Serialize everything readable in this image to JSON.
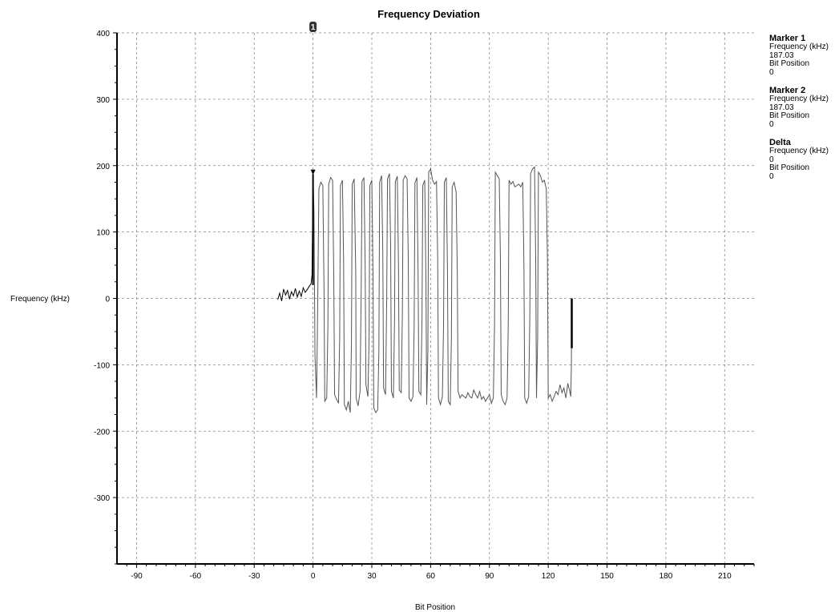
{
  "chart_data": {
    "type": "line",
    "title": "Frequency Deviation",
    "xlabel": "Bit Position",
    "ylabel": "Frequency (kHz)",
    "xlim": [
      -100,
      225
    ],
    "ylim": [
      -400,
      400
    ],
    "x_ticks": [
      -90,
      -60,
      -30,
      0,
      30,
      60,
      90,
      120,
      150,
      180,
      210
    ],
    "y_ticks": [
      400,
      300,
      200,
      100,
      0,
      -100,
      -200,
      -300
    ],
    "grid": true,
    "colors": {
      "trace": "#555555",
      "trace_dark": "#000000",
      "grid": "#888888"
    },
    "marker_label": "1",
    "marker_x": 0,
    "series": [
      {
        "points": [
          [
            -18,
            -2
          ],
          [
            -17,
            8
          ],
          [
            -16,
            -4
          ],
          [
            -15,
            14
          ],
          [
            -14,
            5
          ],
          [
            -13,
            12
          ],
          [
            -12,
            -1
          ],
          [
            -11,
            10
          ],
          [
            -10,
            4
          ],
          [
            -9,
            15
          ],
          [
            -8,
            2
          ],
          [
            -7,
            11
          ],
          [
            -6,
            3
          ],
          [
            -5,
            16
          ],
          [
            -4,
            9
          ],
          [
            -3,
            13
          ],
          [
            -2,
            18
          ],
          [
            -1,
            22
          ],
          [
            -0.5,
            36
          ],
          [
            0,
            187
          ],
          [
            0.5,
            130
          ],
          [
            1,
            -85
          ],
          [
            1.8,
            -150
          ],
          [
            2.2,
            -60
          ],
          [
            3,
            165
          ],
          [
            4,
            175
          ],
          [
            5,
            170
          ],
          [
            5.6,
            20
          ],
          [
            6,
            -155
          ],
          [
            7,
            -150
          ],
          [
            7.6,
            -40
          ],
          [
            8,
            172
          ],
          [
            9,
            182
          ],
          [
            10,
            178
          ],
          [
            10.6,
            30
          ],
          [
            11,
            -145
          ],
          [
            12,
            -152
          ],
          [
            13,
            -158
          ],
          [
            13.6,
            -60
          ],
          [
            14,
            170
          ],
          [
            15,
            178
          ],
          [
            15.6,
            60
          ],
          [
            16,
            -160
          ],
          [
            17,
            -168
          ],
          [
            18,
            -155
          ],
          [
            19,
            -172
          ],
          [
            19.6,
            -70
          ],
          [
            20,
            172
          ],
          [
            21,
            180
          ],
          [
            21.8,
            40
          ],
          [
            22,
            -150
          ],
          [
            23,
            -162
          ],
          [
            24,
            -140
          ],
          [
            24.6,
            20
          ],
          [
            25,
            176
          ],
          [
            26,
            182
          ],
          [
            26.6,
            50
          ],
          [
            27,
            -130
          ],
          [
            28,
            -148
          ],
          [
            28.6,
            -60
          ],
          [
            29,
            170
          ],
          [
            30,
            178
          ],
          [
            30.6,
            40
          ],
          [
            31,
            -165
          ],
          [
            32,
            -172
          ],
          [
            33,
            -168
          ],
          [
            33.6,
            -80
          ],
          [
            34,
            175
          ],
          [
            35,
            185
          ],
          [
            35.6,
            70
          ],
          [
            36,
            -135
          ],
          [
            37,
            -145
          ],
          [
            37.6,
            0
          ],
          [
            38,
            180
          ],
          [
            39,
            188
          ],
          [
            39.6,
            80
          ],
          [
            40,
            -140
          ],
          [
            41,
            -150
          ],
          [
            41.6,
            -30
          ],
          [
            42,
            176
          ],
          [
            43,
            184
          ],
          [
            43.6,
            50
          ],
          [
            44,
            -138
          ],
          [
            45,
            -142
          ],
          [
            45.6,
            -20
          ],
          [
            46,
            178
          ],
          [
            47,
            185
          ],
          [
            48,
            180
          ],
          [
            48.6,
            60
          ],
          [
            49,
            -150
          ],
          [
            50,
            -155
          ],
          [
            51,
            -148
          ],
          [
            51.6,
            -40
          ],
          [
            52,
            174
          ],
          [
            53,
            182
          ],
          [
            53.6,
            40
          ],
          [
            54,
            -140
          ],
          [
            55,
            -145
          ],
          [
            55.6,
            -30
          ],
          [
            56,
            170
          ],
          [
            57,
            178
          ],
          [
            57.6,
            30
          ],
          [
            58,
            -160
          ],
          [
            58.6,
            -80
          ],
          [
            59,
            190
          ],
          [
            60,
            195
          ],
          [
            61,
            178
          ],
          [
            62,
            172
          ],
          [
            63,
            176
          ],
          [
            63.6,
            60
          ],
          [
            64,
            -150
          ],
          [
            65,
            -160
          ],
          [
            66,
            -148
          ],
          [
            66.6,
            -40
          ],
          [
            67,
            175
          ],
          [
            68,
            182
          ],
          [
            68.6,
            40
          ],
          [
            69,
            -155
          ],
          [
            70,
            -160
          ],
          [
            70.6,
            -60
          ],
          [
            71,
            168
          ],
          [
            72,
            175
          ],
          [
            73,
            160
          ],
          [
            73.6,
            40
          ],
          [
            74,
            -140
          ],
          [
            75,
            -150
          ],
          [
            76,
            -145
          ],
          [
            77,
            -148
          ],
          [
            78,
            -150
          ],
          [
            79,
            -142
          ],
          [
            80,
            -148
          ],
          [
            81,
            -150
          ],
          [
            82,
            -138
          ],
          [
            83,
            -145
          ],
          [
            84,
            -150
          ],
          [
            85,
            -140
          ],
          [
            86,
            -152
          ],
          [
            87,
            -148
          ],
          [
            88,
            -155
          ],
          [
            89,
            -150
          ],
          [
            90,
            -145
          ],
          [
            91,
            -158
          ],
          [
            92,
            -150
          ],
          [
            92.6,
            -40
          ],
          [
            93,
            190
          ],
          [
            94,
            185
          ],
          [
            95,
            180
          ],
          [
            95.6,
            60
          ],
          [
            96,
            -145
          ],
          [
            97,
            -155
          ],
          [
            98,
            -160
          ],
          [
            99,
            -150
          ],
          [
            99.6,
            -40
          ],
          [
            100,
            178
          ],
          [
            101,
            172
          ],
          [
            102,
            176
          ],
          [
            103,
            168
          ],
          [
            104,
            170
          ],
          [
            105,
            172
          ],
          [
            106,
            168
          ],
          [
            107,
            175
          ],
          [
            107.6,
            50
          ],
          [
            108,
            -150
          ],
          [
            109,
            -158
          ],
          [
            110,
            -148
          ],
          [
            110.6,
            -30
          ],
          [
            111,
            188
          ],
          [
            112,
            195
          ],
          [
            113,
            198
          ],
          [
            113.6,
            60
          ],
          [
            114,
            -150
          ],
          [
            114.6,
            -60
          ],
          [
            115,
            190
          ],
          [
            116,
            185
          ],
          [
            117,
            175
          ],
          [
            118,
            178
          ],
          [
            119,
            165
          ],
          [
            119.6,
            60
          ],
          [
            120,
            -150
          ],
          [
            121,
            -145
          ],
          [
            122,
            -155
          ],
          [
            123,
            -148
          ],
          [
            124,
            -140
          ],
          [
            125,
            -145
          ],
          [
            126,
            -130
          ],
          [
            127,
            -142
          ],
          [
            128,
            -135
          ],
          [
            129,
            -150
          ],
          [
            130,
            -128
          ],
          [
            131,
            -140
          ],
          [
            131.5,
            -148
          ],
          [
            131.8,
            -100
          ],
          [
            132,
            0
          ]
        ]
      }
    ]
  },
  "markers": [
    {
      "name": "Marker 1",
      "freq_label": "Frequency (kHz)",
      "freq_value": "187.03",
      "bit_label": "Bit Position",
      "bit_value": "0"
    },
    {
      "name": "Marker 2",
      "freq_label": "Frequency (kHz)",
      "freq_value": "187.03",
      "bit_label": "Bit Position",
      "bit_value": "0"
    },
    {
      "name": "Delta",
      "freq_label": "Frequency (kHz)",
      "freq_value": "0",
      "bit_label": "Bit Position",
      "bit_value": "0"
    }
  ]
}
